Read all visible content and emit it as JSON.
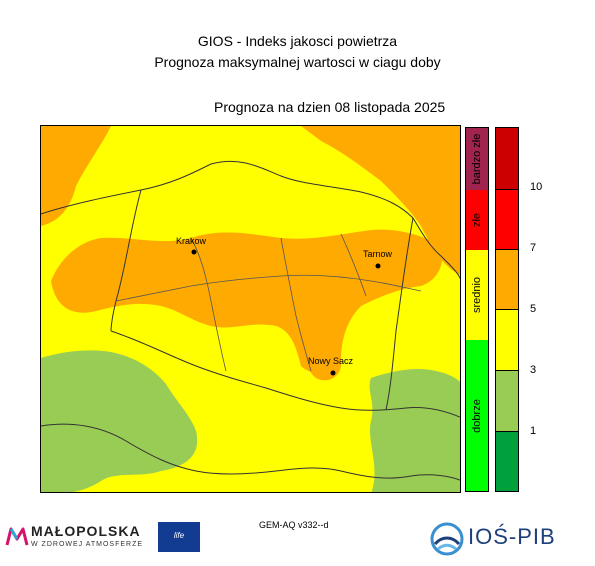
{
  "header": {
    "title": "GIOS - Indeks jakosci powietrza",
    "subtitle": "Prognoza maksymalnej wartosci w ciagu doby",
    "forecast_date": "Prognoza na dzien  08 listopada 2025"
  },
  "map": {
    "cities": [
      {
        "name": "Krakow"
      },
      {
        "name": "Tarnow"
      },
      {
        "name": "Nowy Sacz"
      }
    ]
  },
  "legend": {
    "categories": [
      {
        "label": "bardzo złe",
        "color": "#a0244e"
      },
      {
        "label": "złe",
        "color": "#ff0000"
      },
      {
        "label": "srednio",
        "color": "#ffff00"
      },
      {
        "label": "dobrze",
        "color": "#00ff00"
      }
    ],
    "scale_colors": [
      "#cc0000",
      "#ff0000",
      "#ffaa00",
      "#ffff00",
      "#99cc55",
      "#00a03c"
    ],
    "scale_ticks": [
      "10",
      "7",
      "5",
      "3",
      "1"
    ]
  },
  "footer": {
    "model": "GEM-AQ v332--d",
    "malopolska": "MAŁOPOLSKA",
    "malopolska_sub": "W ZDROWEJ ATMOSFERZE",
    "life": "life",
    "ios": "IOŚ-PIB"
  },
  "colors": {
    "orange_zone": "#ffaa00",
    "yellow_zone": "#ffff00",
    "green_zone": "#99cc55"
  }
}
